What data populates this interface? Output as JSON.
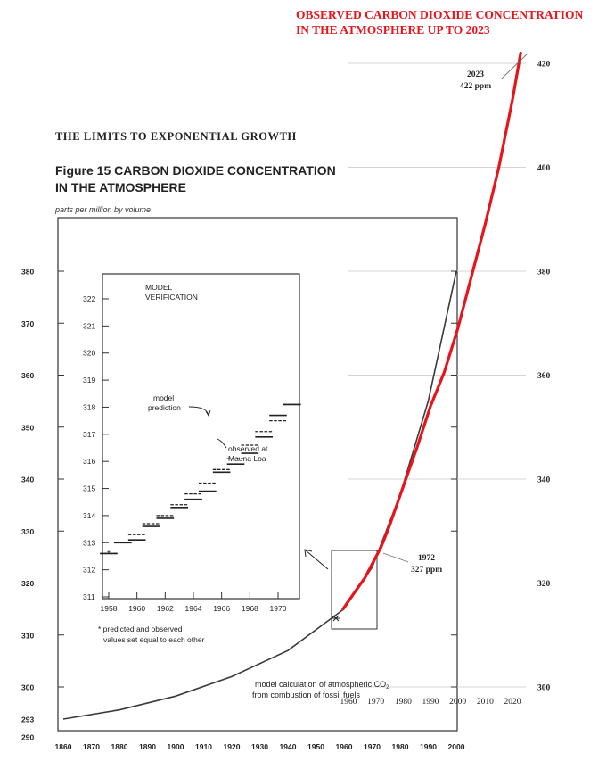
{
  "overlay": {
    "title_line1": "OBSERVED CARBON DIOXIDE CONCENTRATION",
    "title_line2": "IN THE ATMOSPHERE UP TO 2023",
    "color": "#e8141c",
    "annotation_2023_year": "2023",
    "annotation_2023_value": "422 ppm",
    "annotation_1972_year": "1972",
    "annotation_1972_value": "327 ppm"
  },
  "book": {
    "running_head": "THE LIMITS TO EXPONENTIAL GROWTH",
    "figure_title_line1": "Figure 15 CARBON DIOXIDE CONCENTRATION",
    "figure_title_line2": "IN THE ATMOSPHERE",
    "units_label": "parts per million by volume",
    "model_note_line1": "model calculation of atmospheric CO",
    "model_note_sub": "2",
    "model_note_line2": "from combustion of fossil fuels"
  },
  "inset": {
    "title_line1": "MODEL",
    "title_line2": "VERIFICATION",
    "pred_label_line1": "model",
    "pred_label_line2": "prediction",
    "obs_label_line1": "observed at",
    "obs_label_line2": "Mauna Loa",
    "footnote_line1": "* predicted and observed",
    "footnote_line2": "values set equal to each other"
  },
  "chart_data": [
    {
      "type": "line",
      "title": "Figure 15 CARBON DIOXIDE CONCENTRATION IN THE ATMOSPHERE",
      "ylabel": "parts per million by volume",
      "xlim": [
        1860,
        2000
      ],
      "ylim": [
        290,
        380
      ],
      "x_ticks": [
        "1860",
        "1870",
        "1880",
        "1890",
        "1900",
        "1910",
        "1920",
        "1930",
        "1940",
        "1950",
        "1960",
        "1970",
        "1980",
        "1990",
        "2000"
      ],
      "y_ticks": [
        "290",
        "293",
        "300",
        "310",
        "320",
        "330",
        "340",
        "350",
        "360",
        "370",
        "380"
      ],
      "series": [
        {
          "name": "model calculation of atmospheric CO2 from combustion of fossil fuels",
          "x": [
            1860,
            1880,
            1900,
            1920,
            1940,
            1950,
            1960,
            1970,
            1980,
            1990,
            2000
          ],
          "y": [
            293,
            295,
            298,
            302,
            307,
            311,
            315,
            323,
            337,
            355,
            380
          ]
        }
      ]
    },
    {
      "type": "line",
      "title": "MODEL VERIFICATION",
      "xlim": [
        1957,
        1972
      ],
      "ylim": [
        311,
        322.5
      ],
      "x_ticks": [
        "1958",
        "1960",
        "1962",
        "1964",
        "1966",
        "1968",
        "1970"
      ],
      "y_ticks": [
        "311",
        "312",
        "313",
        "314",
        "315",
        "316",
        "317",
        "318",
        "319",
        "320",
        "321",
        "322"
      ],
      "series": [
        {
          "name": "model prediction",
          "x": [
            1958,
            1959,
            1960,
            1961,
            1962,
            1963,
            1964,
            1965,
            1966,
            1967,
            1968,
            1969,
            1970,
            1971
          ],
          "y": [
            312.6,
            313.0,
            313.3,
            313.7,
            314.0,
            314.4,
            314.8,
            315.2,
            315.7,
            316.1,
            316.6,
            317.1,
            317.5,
            318.1
          ]
        },
        {
          "name": "observed at Mauna Loa",
          "x": [
            1958,
            1959,
            1960,
            1961,
            1962,
            1963,
            1964,
            1965,
            1966,
            1967,
            1968,
            1969,
            1970,
            1971
          ],
          "y": [
            312.6,
            313.0,
            313.1,
            313.6,
            313.9,
            314.3,
            314.6,
            314.9,
            315.6,
            315.9,
            316.3,
            316.9,
            317.7,
            318.1
          ]
        }
      ]
    },
    {
      "type": "line",
      "title": "OBSERVED CARBON DIOXIDE CONCENTRATION IN THE ATMOSPHERE UP TO 2023",
      "xlim": [
        1950,
        2023
      ],
      "ylim": [
        300,
        422
      ],
      "x_ticks": [
        "1960",
        "1970",
        "1980",
        "1990",
        "2000",
        "2010",
        "2020"
      ],
      "y_ticks": [
        "300",
        "320",
        "340",
        "360",
        "380",
        "400",
        "420"
      ],
      "series": [
        {
          "name": "observed",
          "x": [
            1958,
            1962,
            1966,
            1970,
            1972,
            1975,
            1980,
            1985,
            1990,
            1995,
            2000,
            2005,
            2010,
            2015,
            2020,
            2023
          ],
          "y": [
            315,
            318,
            321,
            325,
            327,
            331,
            338.5,
            346,
            354,
            360.5,
            369,
            379,
            389,
            400,
            413,
            422
          ]
        }
      ]
    }
  ]
}
